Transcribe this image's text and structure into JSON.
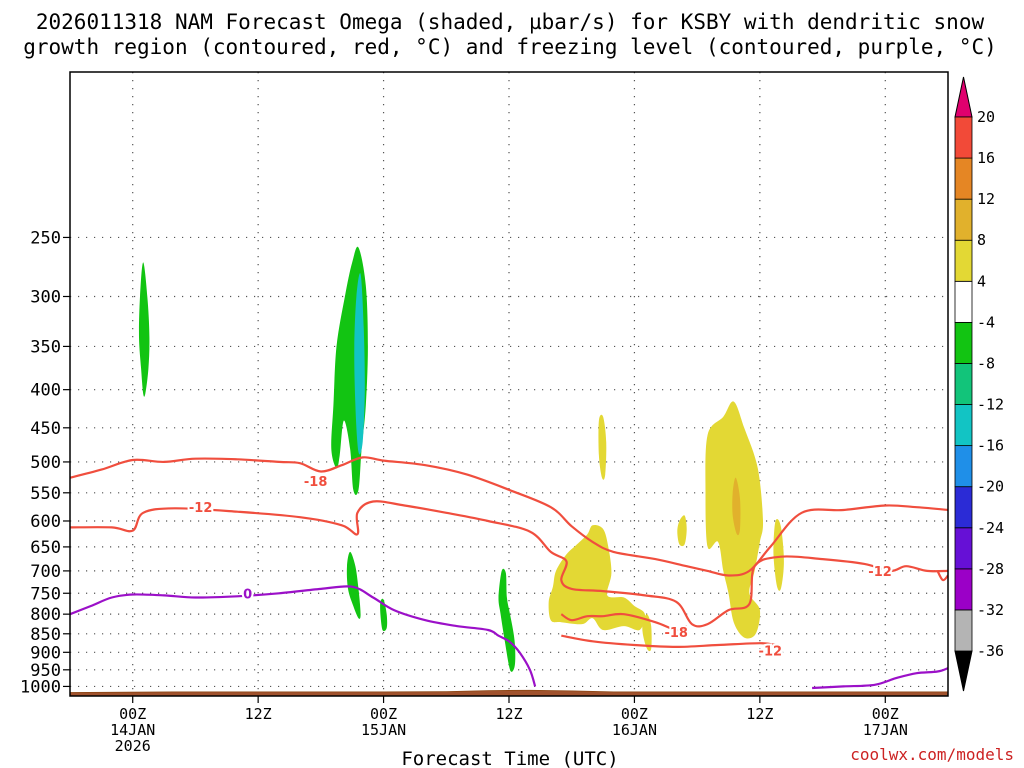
{
  "title_lines": [
    "2026011318 NAM Forecast Omega (shaded, µbar/s) for KSBY with dendritic snow",
    "growth region (contoured, red, °C) and freezing level (contoured, purple, °C)"
  ],
  "credit": "coolwx.com/models",
  "chart_data": {
    "type": "heatmap",
    "title": "2026011318 NAM Forecast Omega (shaded, µbar/s) for KSBY with dendritic snow growth region (contoured, red, °C) and freezing level (contoured, purple, °C)",
    "xlabel": "Forecast Time (UTC)",
    "ylabel": "",
    "x_units": "forecast hour from 2026011318",
    "xlim": [
      0,
      84
    ],
    "y_units": "pressure (mb)",
    "ylim": [
      1030,
      150
    ],
    "y_scale": "log",
    "grid": true,
    "y_ticks": [
      250,
      300,
      350,
      400,
      450,
      500,
      550,
      600,
      650,
      700,
      750,
      800,
      850,
      900,
      950,
      1000
    ],
    "x_ticks": [
      {
        "hour": 6,
        "lines": [
          "00Z",
          "14JAN",
          "2026"
        ]
      },
      {
        "hour": 18,
        "lines": [
          "12Z",
          "",
          ""
        ]
      },
      {
        "hour": 30,
        "lines": [
          "00Z",
          "15JAN",
          ""
        ]
      },
      {
        "hour": 42,
        "lines": [
          "12Z",
          "",
          ""
        ]
      },
      {
        "hour": 54,
        "lines": [
          "00Z",
          "16JAN",
          ""
        ]
      },
      {
        "hour": 66,
        "lines": [
          "12Z",
          "",
          ""
        ]
      },
      {
        "hour": 78,
        "lines": [
          "00Z",
          "17JAN",
          ""
        ]
      }
    ],
    "colorbar": {
      "levels": [
        -36,
        -32,
        -28,
        -24,
        -20,
        -16,
        -12,
        -8,
        -4,
        4,
        8,
        12,
        16,
        20
      ],
      "colors": [
        "#b4b4b4",
        "#9b00c7",
        "#6610d6",
        "#2b2bd6",
        "#1f8fe8",
        "#12c4c4",
        "#12c47a",
        "#12c412",
        "#ffffff",
        "#e3d834",
        "#e1b12c",
        "#e58624",
        "#f24a38"
      ],
      "under_color": "#000000",
      "over_color": "#e0006e"
    },
    "omega_regions": [
      {
        "color": "#12c412",
        "points": [
          [
            7,
            270
          ],
          [
            7.4,
            300
          ],
          [
            7.6,
            340
          ],
          [
            7.5,
            375
          ],
          [
            7.2,
            405
          ],
          [
            7,
            405
          ],
          [
            6.8,
            375
          ],
          [
            6.6,
            340
          ],
          [
            6.7,
            300
          ]
        ]
      },
      {
        "color": "#12c412",
        "points": [
          [
            25,
            480
          ],
          [
            25.2,
            420
          ],
          [
            25.5,
            350
          ],
          [
            26.3,
            300
          ],
          [
            27,
            270
          ],
          [
            27.6,
            258
          ],
          [
            28.3,
            290
          ],
          [
            28.5,
            350
          ],
          [
            28.3,
            420
          ],
          [
            27.9,
            480
          ],
          [
            27.6,
            545
          ],
          [
            27.1,
            545
          ],
          [
            26.8,
            480
          ],
          [
            26.2,
            440
          ],
          [
            25.8,
            490
          ],
          [
            25.5,
            510
          ]
        ]
      },
      {
        "color": "#12c4c4",
        "points": [
          [
            27.4,
            300
          ],
          [
            27.8,
            280
          ],
          [
            28.1,
            330
          ],
          [
            28.2,
            400
          ],
          [
            28,
            470
          ],
          [
            27.6,
            485
          ],
          [
            27.3,
            420
          ],
          [
            27.2,
            350
          ]
        ]
      },
      {
        "color": "#12c412",
        "points": [
          [
            26.5,
            690
          ],
          [
            26.8,
            660
          ],
          [
            27.3,
            690
          ],
          [
            27.6,
            740
          ],
          [
            27.8,
            800
          ],
          [
            27.6,
            810
          ],
          [
            27.1,
            780
          ],
          [
            26.6,
            740
          ]
        ]
      },
      {
        "color": "#12c412",
        "points": [
          [
            29.7,
            770
          ],
          [
            30,
            765
          ],
          [
            30.3,
            800
          ],
          [
            30.3,
            835
          ],
          [
            29.9,
            840
          ],
          [
            29.7,
            800
          ]
        ]
      },
      {
        "color": "#12c412",
        "points": [
          [
            41.3,
            700
          ],
          [
            41.7,
            705
          ],
          [
            41.8,
            760
          ],
          [
            42.1,
            800
          ],
          [
            42.5,
            860
          ],
          [
            42.6,
            910
          ],
          [
            42.5,
            945
          ],
          [
            42.1,
            950
          ],
          [
            41.6,
            870
          ],
          [
            41.2,
            800
          ],
          [
            41,
            760
          ]
        ]
      },
      {
        "color": "#e3d834",
        "points": [
          [
            50.6,
            440
          ],
          [
            51,
            435
          ],
          [
            51.3,
            470
          ],
          [
            51.2,
            520
          ],
          [
            50.9,
            525
          ],
          [
            50.6,
            490
          ]
        ]
      },
      {
        "color": "#e3d834",
        "points": [
          [
            46.5,
            700
          ],
          [
            47.5,
            665
          ],
          [
            48.5,
            645
          ],
          [
            49.5,
            625
          ],
          [
            50,
            608
          ],
          [
            51,
            615
          ],
          [
            51.5,
            650
          ],
          [
            51.8,
            705
          ],
          [
            51.4,
            755
          ],
          [
            53,
            760
          ],
          [
            54,
            780
          ],
          [
            55,
            800
          ],
          [
            54.5,
            840
          ],
          [
            53,
            830
          ],
          [
            51,
            840
          ],
          [
            50,
            810
          ],
          [
            49,
            825
          ],
          [
            47,
            820
          ],
          [
            46,
            815
          ],
          [
            45.8,
            770
          ],
          [
            46.2,
            735
          ]
        ]
      },
      {
        "color": "#e3d834",
        "points": [
          [
            54.8,
            820
          ],
          [
            55.2,
            800
          ],
          [
            55.6,
            830
          ],
          [
            55.6,
            890
          ],
          [
            55.2,
            890
          ],
          [
            54.8,
            850
          ]
        ]
      },
      {
        "color": "#e3d834",
        "points": [
          [
            58.3,
            600
          ],
          [
            58.8,
            590
          ],
          [
            59,
            615
          ],
          [
            58.8,
            645
          ],
          [
            58.3,
            645
          ],
          [
            58.1,
            620
          ]
        ]
      },
      {
        "color": "#e3d834",
        "points": [
          [
            61,
            460
          ],
          [
            62.5,
            435
          ],
          [
            63.5,
            415
          ],
          [
            64.5,
            450
          ],
          [
            65.8,
            510
          ],
          [
            66.3,
            600
          ],
          [
            66,
            640
          ],
          [
            65.5,
            700
          ],
          [
            65,
            750
          ],
          [
            66,
            790
          ],
          [
            65.6,
            850
          ],
          [
            64.5,
            860
          ],
          [
            63.5,
            820
          ],
          [
            63,
            750
          ],
          [
            62.5,
            700
          ],
          [
            62,
            640
          ],
          [
            61,
            650
          ],
          [
            60.8,
            550
          ]
        ]
      },
      {
        "color": "#e3d834",
        "points": [
          [
            67.5,
            600
          ],
          [
            68,
            610
          ],
          [
            68.3,
            680
          ],
          [
            68,
            740
          ],
          [
            67.6,
            730
          ],
          [
            67.3,
            660
          ]
        ]
      },
      {
        "color": "#e1b12c",
        "points": [
          [
            63.4,
            550
          ],
          [
            63.7,
            525
          ],
          [
            64.1,
            560
          ],
          [
            64.1,
            615
          ],
          [
            63.8,
            625
          ],
          [
            63.4,
            590
          ]
        ]
      }
    ],
    "dgz_contours": [
      {
        "label": "-18",
        "label_pos": [
          23.5,
          530
        ],
        "points": [
          [
            0,
            525
          ],
          [
            3,
            512
          ],
          [
            6,
            497
          ],
          [
            9,
            500
          ],
          [
            12,
            495
          ],
          [
            16,
            496
          ],
          [
            20,
            500
          ],
          [
            22,
            502
          ],
          [
            24,
            515
          ],
          [
            26,
            505
          ],
          [
            28,
            493
          ],
          [
            30,
            498
          ],
          [
            34,
            505
          ],
          [
            38,
            520
          ],
          [
            42,
            545
          ],
          [
            46,
            575
          ],
          [
            48,
            610
          ],
          [
            50,
            640
          ],
          [
            52,
            660
          ],
          [
            56,
            675
          ],
          [
            59,
            690
          ],
          [
            61,
            700
          ],
          [
            63,
            710
          ],
          [
            65,
            700
          ],
          [
            67,
            650
          ],
          [
            70,
            585
          ],
          [
            74,
            580
          ],
          [
            78,
            572
          ],
          [
            81,
            575
          ],
          [
            84,
            580
          ]
        ]
      },
      {
        "label": "-12",
        "label_pos": [
          12.5,
          575
        ],
        "points": [
          [
            0,
            612
          ],
          [
            4,
            612
          ],
          [
            6,
            618
          ],
          [
            7,
            585
          ],
          [
            10,
            577
          ],
          [
            16,
            583
          ],
          [
            22,
            593
          ],
          [
            26,
            608
          ],
          [
            27.5,
            625
          ],
          [
            27.5,
            585
          ],
          [
            29,
            565
          ],
          [
            32,
            572
          ],
          [
            36,
            585
          ],
          [
            40,
            600
          ],
          [
            44,
            620
          ],
          [
            46,
            660
          ],
          [
            47.5,
            680
          ],
          [
            47,
            720
          ],
          [
            48,
            740
          ],
          [
            51,
            745
          ],
          [
            55,
            755
          ],
          [
            58,
            770
          ],
          [
            59.5,
            825
          ],
          [
            61,
            825
          ],
          [
            63,
            790
          ],
          [
            65,
            775
          ],
          [
            65.5,
            690
          ],
          [
            68,
            670
          ],
          [
            72,
            675
          ],
          [
            76,
            685
          ],
          [
            78.5,
            700
          ],
          [
            80,
            690
          ],
          [
            82,
            700
          ],
          [
            84,
            700
          ]
        ]
      },
      {
        "label": "-18",
        "label_pos": [
          58,
          845
        ],
        "points": [
          [
            47,
            800
          ],
          [
            48,
            815
          ],
          [
            49.5,
            805
          ],
          [
            51,
            805
          ],
          [
            53,
            800
          ],
          [
            56,
            820
          ],
          [
            58,
            840
          ],
          [
            59,
            830
          ]
        ]
      },
      {
        "label": "-12",
        "label_pos": [
          67,
          895
        ],
        "points": [
          [
            47,
            855
          ],
          [
            50,
            870
          ],
          [
            54,
            880
          ],
          [
            58,
            885
          ],
          [
            62,
            880
          ],
          [
            66,
            875
          ],
          [
            67.5,
            880
          ]
        ]
      },
      {
        "label": "-12",
        "label_pos": [
          77.5,
          700
        ],
        "points": [
          [
            83,
            700
          ],
          [
            83.5,
            720
          ],
          [
            84,
            710
          ]
        ]
      }
    ],
    "freezing_level": [
      {
        "label": "0",
        "label_pos": [
          17,
          750
        ],
        "points": [
          [
            0,
            800
          ],
          [
            2,
            780
          ],
          [
            4,
            760
          ],
          [
            6,
            753
          ],
          [
            9,
            755
          ],
          [
            12,
            760
          ],
          [
            16,
            757
          ],
          [
            20,
            750
          ],
          [
            24,
            740
          ],
          [
            27,
            735
          ],
          [
            29,
            760
          ],
          [
            31,
            790
          ],
          [
            34,
            815
          ],
          [
            37,
            830
          ],
          [
            40,
            840
          ],
          [
            41,
            855
          ],
          [
            42,
            870
          ],
          [
            43,
            900
          ],
          [
            44,
            950
          ],
          [
            44.5,
            1000
          ]
        ]
      },
      {
        "points": [
          [
            71,
            1005
          ],
          [
            74,
            1000
          ],
          [
            77,
            995
          ],
          [
            79,
            975
          ],
          [
            81,
            960
          ],
          [
            83,
            955
          ],
          [
            84,
            945
          ]
        ]
      }
    ],
    "ground_pressure": 1018
  }
}
